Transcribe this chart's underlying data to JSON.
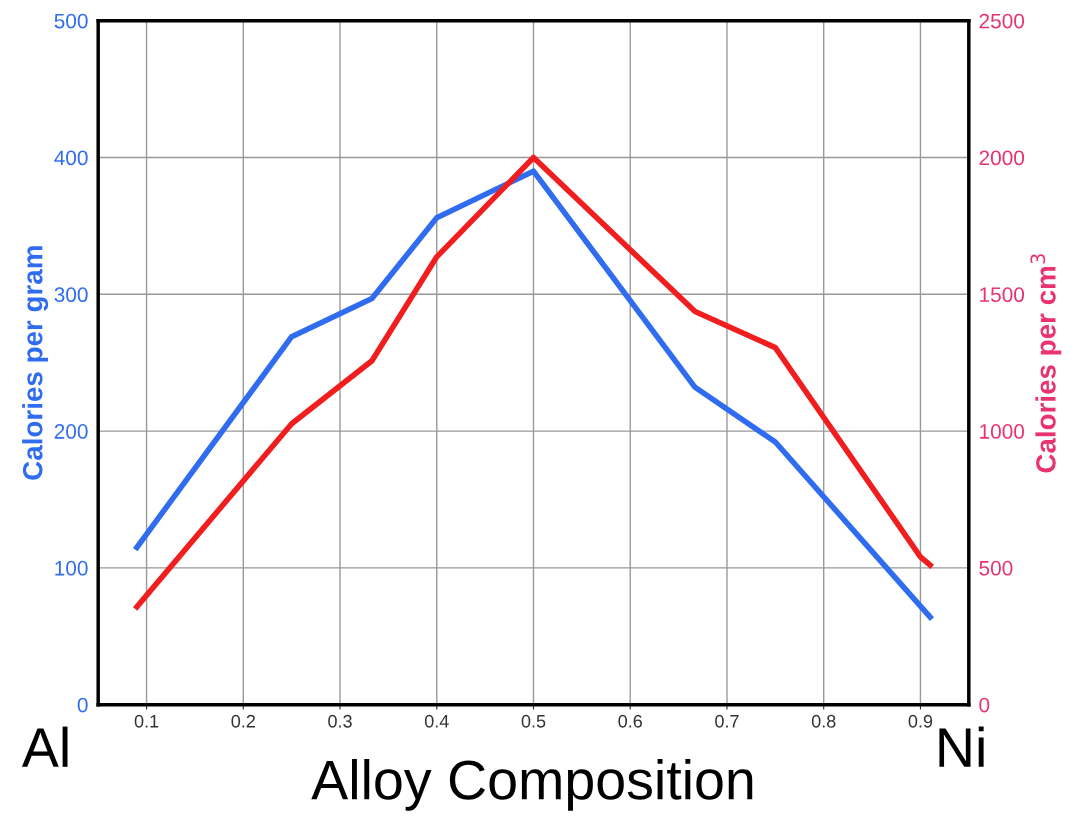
{
  "chart_data": {
    "type": "line",
    "xlabel": "Alloy Composition",
    "ylabel": "Calories per gram",
    "y2label": "Calories per cm$^{3}$",
    "annotations": [
      "Al",
      "Ni"
    ],
    "xlim": [
      0.05,
      0.95
    ],
    "xticks": [
      0.1,
      0.2,
      0.3,
      0.4,
      0.5,
      0.6,
      0.7,
      0.8,
      0.9
    ],
    "ylim": [
      0,
      500
    ],
    "yticks": [
      0,
      100,
      200,
      300,
      400,
      500
    ],
    "y2lim": [
      0,
      2500
    ],
    "y2ticks": [
      0,
      500,
      1000,
      1500,
      2000,
      2500
    ],
    "grid": true,
    "line_style": "solid",
    "series": [
      {
        "color": "#2f6cf0",
        "x": [
          0.09,
          0.25,
          0.333,
          0.4,
          0.5,
          0.667,
          0.75,
          0.91
        ],
        "values": [
          115,
          269,
          297,
          356,
          390,
          232,
          192,
          64
        ]
      },
      {
        "color": "#f01e1e",
        "axis": "y2",
        "x": [
          0.09,
          0.25,
          0.333,
          0.4,
          0.5,
          0.667,
          0.75,
          0.9,
          0.91
        ],
        "values": [
          358,
          1027,
          1257,
          1637,
          2000,
          1437,
          1305,
          540,
          510
        ]
      }
    ]
  }
}
